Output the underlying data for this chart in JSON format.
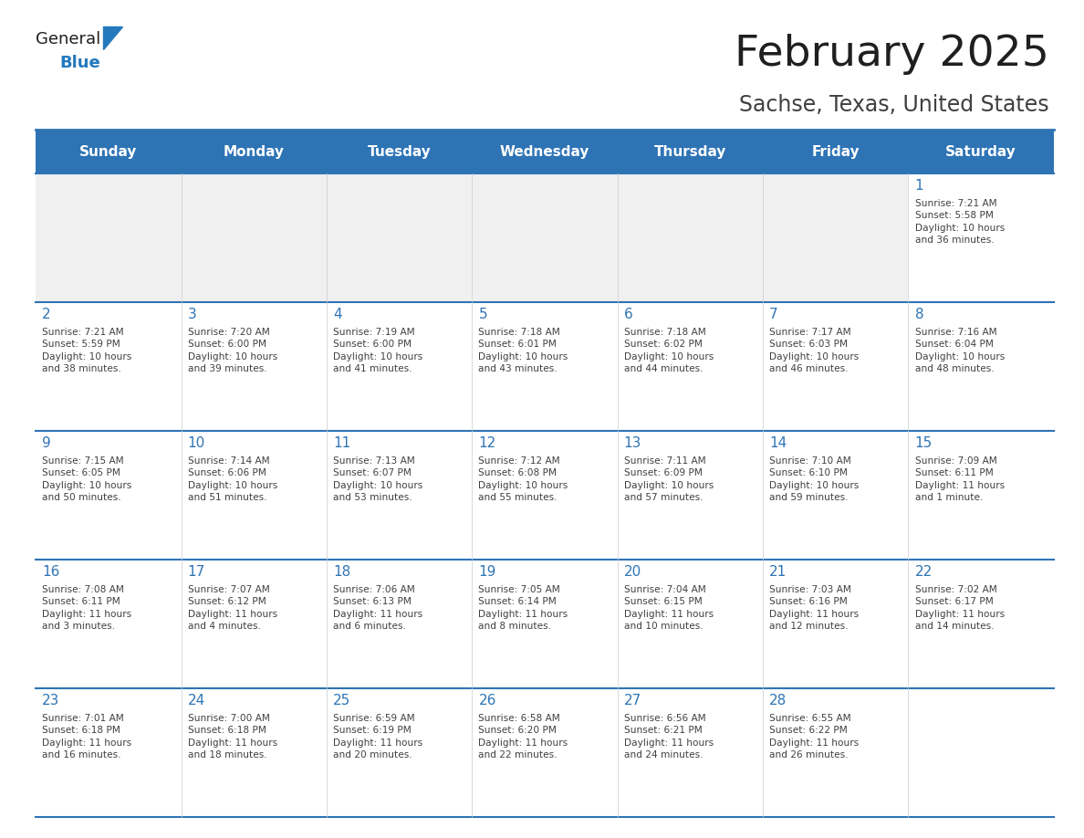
{
  "title": "February 2025",
  "subtitle": "Sachse, Texas, United States",
  "days_of_week": [
    "Sunday",
    "Monday",
    "Tuesday",
    "Wednesday",
    "Thursday",
    "Friday",
    "Saturday"
  ],
  "header_bg": "#2E74B5",
  "header_text": "#FFFFFF",
  "cell_bg_light": "#FFFFFF",
  "cell_bg_dark": "#F0F0F0",
  "day_number_color": "#2E74B5",
  "text_color": "#404040",
  "border_color": "#2E74B5",
  "title_color": "#1F1F1F",
  "subtitle_color": "#404040",
  "logo_general_color": "#1F1F1F",
  "logo_blue_color": "#2479BD",
  "calendar_data": [
    [
      {
        "day": null,
        "info": null
      },
      {
        "day": null,
        "info": null
      },
      {
        "day": null,
        "info": null
      },
      {
        "day": null,
        "info": null
      },
      {
        "day": null,
        "info": null
      },
      {
        "day": null,
        "info": null
      },
      {
        "day": 1,
        "info": "Sunrise: 7:21 AM\nSunset: 5:58 PM\nDaylight: 10 hours\nand 36 minutes."
      }
    ],
    [
      {
        "day": 2,
        "info": "Sunrise: 7:21 AM\nSunset: 5:59 PM\nDaylight: 10 hours\nand 38 minutes."
      },
      {
        "day": 3,
        "info": "Sunrise: 7:20 AM\nSunset: 6:00 PM\nDaylight: 10 hours\nand 39 minutes."
      },
      {
        "day": 4,
        "info": "Sunrise: 7:19 AM\nSunset: 6:00 PM\nDaylight: 10 hours\nand 41 minutes."
      },
      {
        "day": 5,
        "info": "Sunrise: 7:18 AM\nSunset: 6:01 PM\nDaylight: 10 hours\nand 43 minutes."
      },
      {
        "day": 6,
        "info": "Sunrise: 7:18 AM\nSunset: 6:02 PM\nDaylight: 10 hours\nand 44 minutes."
      },
      {
        "day": 7,
        "info": "Sunrise: 7:17 AM\nSunset: 6:03 PM\nDaylight: 10 hours\nand 46 minutes."
      },
      {
        "day": 8,
        "info": "Sunrise: 7:16 AM\nSunset: 6:04 PM\nDaylight: 10 hours\nand 48 minutes."
      }
    ],
    [
      {
        "day": 9,
        "info": "Sunrise: 7:15 AM\nSunset: 6:05 PM\nDaylight: 10 hours\nand 50 minutes."
      },
      {
        "day": 10,
        "info": "Sunrise: 7:14 AM\nSunset: 6:06 PM\nDaylight: 10 hours\nand 51 minutes."
      },
      {
        "day": 11,
        "info": "Sunrise: 7:13 AM\nSunset: 6:07 PM\nDaylight: 10 hours\nand 53 minutes."
      },
      {
        "day": 12,
        "info": "Sunrise: 7:12 AM\nSunset: 6:08 PM\nDaylight: 10 hours\nand 55 minutes."
      },
      {
        "day": 13,
        "info": "Sunrise: 7:11 AM\nSunset: 6:09 PM\nDaylight: 10 hours\nand 57 minutes."
      },
      {
        "day": 14,
        "info": "Sunrise: 7:10 AM\nSunset: 6:10 PM\nDaylight: 10 hours\nand 59 minutes."
      },
      {
        "day": 15,
        "info": "Sunrise: 7:09 AM\nSunset: 6:11 PM\nDaylight: 11 hours\nand 1 minute."
      }
    ],
    [
      {
        "day": 16,
        "info": "Sunrise: 7:08 AM\nSunset: 6:11 PM\nDaylight: 11 hours\nand 3 minutes."
      },
      {
        "day": 17,
        "info": "Sunrise: 7:07 AM\nSunset: 6:12 PM\nDaylight: 11 hours\nand 4 minutes."
      },
      {
        "day": 18,
        "info": "Sunrise: 7:06 AM\nSunset: 6:13 PM\nDaylight: 11 hours\nand 6 minutes."
      },
      {
        "day": 19,
        "info": "Sunrise: 7:05 AM\nSunset: 6:14 PM\nDaylight: 11 hours\nand 8 minutes."
      },
      {
        "day": 20,
        "info": "Sunrise: 7:04 AM\nSunset: 6:15 PM\nDaylight: 11 hours\nand 10 minutes."
      },
      {
        "day": 21,
        "info": "Sunrise: 7:03 AM\nSunset: 6:16 PM\nDaylight: 11 hours\nand 12 minutes."
      },
      {
        "day": 22,
        "info": "Sunrise: 7:02 AM\nSunset: 6:17 PM\nDaylight: 11 hours\nand 14 minutes."
      }
    ],
    [
      {
        "day": 23,
        "info": "Sunrise: 7:01 AM\nSunset: 6:18 PM\nDaylight: 11 hours\nand 16 minutes."
      },
      {
        "day": 24,
        "info": "Sunrise: 7:00 AM\nSunset: 6:18 PM\nDaylight: 11 hours\nand 18 minutes."
      },
      {
        "day": 25,
        "info": "Sunrise: 6:59 AM\nSunset: 6:19 PM\nDaylight: 11 hours\nand 20 minutes."
      },
      {
        "day": 26,
        "info": "Sunrise: 6:58 AM\nSunset: 6:20 PM\nDaylight: 11 hours\nand 22 minutes."
      },
      {
        "day": 27,
        "info": "Sunrise: 6:56 AM\nSunset: 6:21 PM\nDaylight: 11 hours\nand 24 minutes."
      },
      {
        "day": 28,
        "info": "Sunrise: 6:55 AM\nSunset: 6:22 PM\nDaylight: 11 hours\nand 26 minutes."
      },
      {
        "day": null,
        "info": null
      }
    ]
  ]
}
